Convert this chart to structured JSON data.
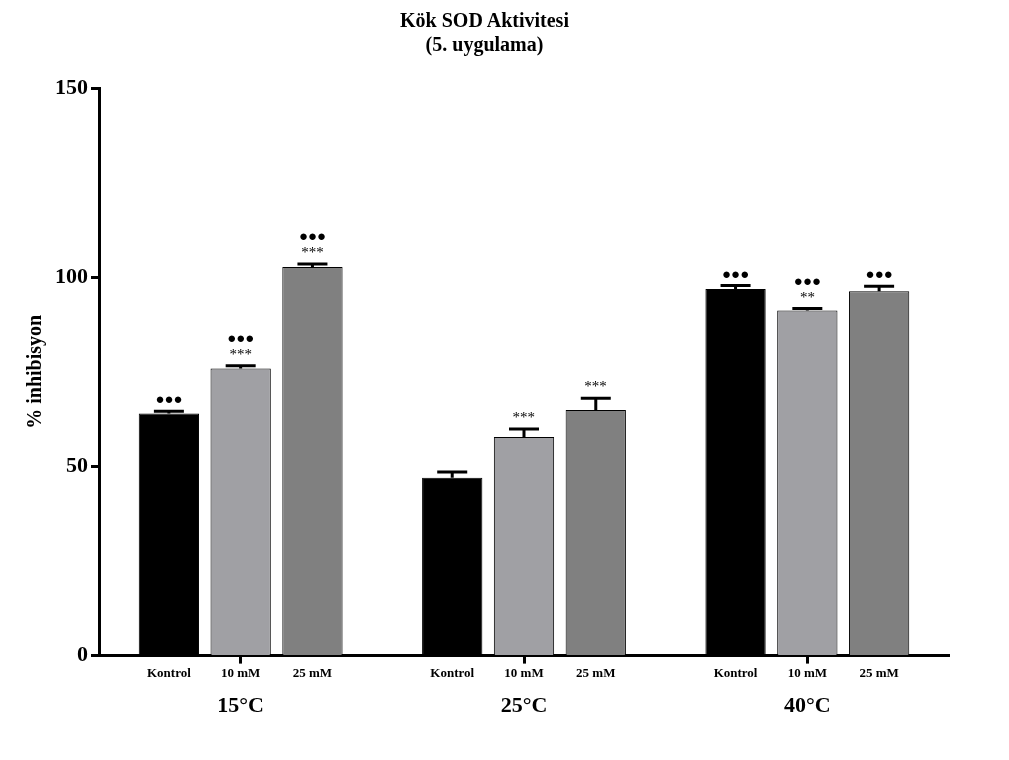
{
  "chart_data": {
    "type": "bar",
    "title": [
      "Kök SOD Aktivitesi",
      "(5. uygulama)"
    ],
    "ylabel": "% inhibisyon",
    "categories": [
      "15°C",
      "25°C",
      "40°C"
    ],
    "series": [
      {
        "name": "Kontrol",
        "color": "#000000",
        "values": [
          64.0,
          47.0,
          96.9
        ],
        "errors": [
          [
            64.0,
            64.6
          ],
          [
            47.0,
            48.5
          ],
          [
            96.9,
            97.8
          ]
        ],
        "value_labels": [
          "●●●",
          null,
          "●●●"
        ]
      },
      {
        "name": "10 mM",
        "color": "#a0a0a4",
        "values": [
          75.9,
          57.8,
          91.2
        ],
        "errors": [
          [
            75.9,
            76.6
          ],
          [
            57.8,
            59.9
          ],
          [
            91.2,
            91.7
          ]
        ],
        "value_labels": [
          "●●●\n***",
          "***",
          "●●●\n**"
        ]
      },
      {
        "name": "25 mM",
        "color": "#808080",
        "values": [
          102.7,
          64.9,
          96.3
        ],
        "errors": [
          [
            102.7,
            103.5
          ],
          [
            64.9,
            68.0
          ],
          [
            96.3,
            97.6
          ]
        ],
        "value_labels": [
          "●●●\n***",
          "***",
          "●●●"
        ]
      }
    ],
    "ylim": [
      0,
      150
    ],
    "yticks": [
      0,
      50,
      100,
      150
    ],
    "grid": false,
    "legend": false
  }
}
